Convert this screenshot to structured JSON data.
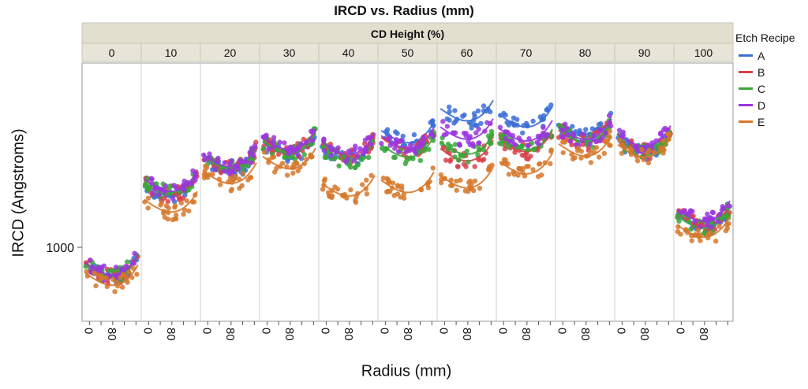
{
  "chart_data": {
    "type": "scatter",
    "title": "IRCD vs. Radius (mm)",
    "xlabel": "Radius (mm)",
    "ylabel": "IRCD (Angstroms)",
    "y_scale": "log",
    "y_ticks": [
      1000
    ],
    "x_ticks": [
      "0",
      "80"
    ],
    "panel_group_label": "CD Height (%)",
    "panels": [
      "0",
      "10",
      "20",
      "30",
      "40",
      "50",
      "60",
      "70",
      "80",
      "90",
      "100"
    ],
    "legend_title": "Etch Recipe",
    "legend_position": "right",
    "x_range": [
      0,
      100
    ],
    "series": [
      {
        "name": "A",
        "color": "#3b6fd6"
      },
      {
        "name": "B",
        "color": "#d9414a"
      },
      {
        "name": "C",
        "color": "#39a63a"
      },
      {
        "name": "D",
        "color": "#9a35e0"
      },
      {
        "name": "E",
        "color": "#d6782a"
      }
    ],
    "panel_levels": {
      "0": {
        "A": 900,
        "B": 905,
        "C": 910,
        "D": 915,
        "E": 860
      },
      "10": {
        "A": 1450,
        "B": 1460,
        "C": 1480,
        "D": 1490,
        "E": 1320
      },
      "20": {
        "A": 1680,
        "B": 1700,
        "C": 1710,
        "D": 1720,
        "E": 1560
      },
      "30": {
        "A": 1850,
        "B": 1880,
        "C": 1860,
        "D": 1900,
        "E": 1700
      },
      "40": {
        "A": 1800,
        "B": 1830,
        "C": 1780,
        "D": 1850,
        "E": 1450
      },
      "50": {
        "A": 1980,
        "B": 1900,
        "C": 1820,
        "D": 1920,
        "E": 1480
      },
      "60": {
        "A": 2250,
        "B": 1780,
        "C": 1850,
        "D": 2020,
        "E": 1520
      },
      "70": {
        "A": 2170,
        "B": 1880,
        "C": 1900,
        "D": 2000,
        "E": 1650
      },
      "80": {
        "A": 2050,
        "B": 1980,
        "C": 1990,
        "D": 2020,
        "E": 1830
      },
      "90": {
        "A": 1860,
        "B": 1880,
        "C": 1880,
        "D": 1940,
        "E": 1820
      },
      "100": {
        "A": 1210,
        "B": 1220,
        "C": 1200,
        "D": 1250,
        "E": 1140
      }
    }
  }
}
